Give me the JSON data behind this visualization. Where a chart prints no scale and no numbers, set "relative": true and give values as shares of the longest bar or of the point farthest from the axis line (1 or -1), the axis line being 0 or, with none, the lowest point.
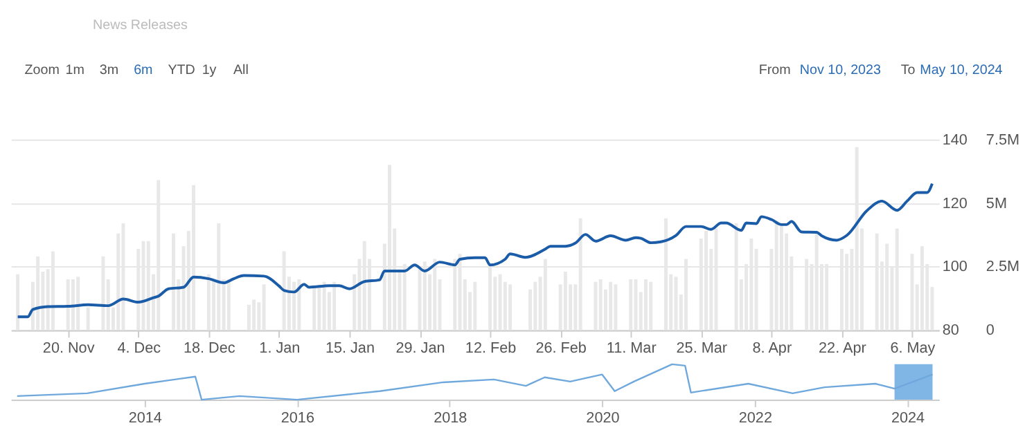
{
  "chart_data": [
    {
      "type": "line",
      "xlim": [
        "2023-11-10",
        "2024-05-10"
      ],
      "xticks": [
        {
          "value": "2023-11-20",
          "label": "20. Nov"
        },
        {
          "value": "2023-12-04",
          "label": "4. Dec"
        },
        {
          "value": "2023-12-18",
          "label": "18. Dec"
        },
        {
          "value": "2024-01-01",
          "label": "1. Jan"
        },
        {
          "value": "2024-01-15",
          "label": "15. Jan"
        },
        {
          "value": "2024-01-29",
          "label": "29. Jan"
        },
        {
          "value": "2024-02-12",
          "label": "12. Feb"
        },
        {
          "value": "2024-02-26",
          "label": "26. Feb"
        },
        {
          "value": "2024-03-11",
          "label": "11. Mar"
        },
        {
          "value": "2024-03-25",
          "label": "25. Mar"
        },
        {
          "value": "2024-04-08",
          "label": "8. Apr"
        },
        {
          "value": "2024-04-22",
          "label": "22. Apr"
        },
        {
          "value": "2024-05-06",
          "label": "6. May"
        }
      ],
      "ylim": [
        80,
        140
      ],
      "yticks": [
        80,
        100,
        120,
        140
      ],
      "y2lim": [
        0,
        7500000
      ],
      "y2ticks": [
        0,
        {
          "value": 2500000,
          "label": "2.5M"
        },
        {
          "value": 5000000,
          "label": "5M"
        },
        {
          "value": 7500000,
          "label": "7.5M"
        }
      ],
      "grid": "y",
      "annotations": [
        "News Releases",
        "Zoom",
        "1m",
        "3m",
        "6m",
        "YTD",
        "1y",
        "All",
        "From",
        "Nov 10, 2023",
        "To",
        "May 10, 2024"
      ],
      "series": [
        {
          "type": "bar",
          "axis": "y2",
          "color": "#e8e8e8",
          "x": [
            "2023-11-10",
            "2023-11-13",
            "2023-11-14",
            "2023-11-15",
            "2023-11-16",
            "2023-11-17",
            "2023-11-20",
            "2023-11-21",
            "2023-11-22",
            "2023-11-24",
            "2023-11-27",
            "2023-11-28",
            "2023-11-29",
            "2023-11-30",
            "2023-12-01",
            "2023-12-04",
            "2023-12-05",
            "2023-12-06",
            "2023-12-07",
            "2023-12-08",
            "2023-12-11",
            "2023-12-12",
            "2023-12-13",
            "2023-12-14",
            "2023-12-15",
            "2023-12-18",
            "2023-12-19",
            "2023-12-20",
            "2023-12-21",
            "2023-12-22",
            "2023-12-26",
            "2023-12-27",
            "2023-12-28",
            "2023-12-29",
            "2024-01-02",
            "2024-01-03",
            "2024-01-04",
            "2024-01-05",
            "2024-01-08",
            "2024-01-09",
            "2024-01-10",
            "2024-01-11",
            "2024-01-12",
            "2024-01-16",
            "2024-01-17",
            "2024-01-18",
            "2024-01-19",
            "2024-01-22",
            "2024-01-23",
            "2024-01-24",
            "2024-01-25",
            "2024-01-26",
            "2024-01-29",
            "2024-01-30",
            "2024-01-31",
            "2024-02-01",
            "2024-02-02",
            "2024-02-05",
            "2024-02-06",
            "2024-02-07",
            "2024-02-08",
            "2024-02-09",
            "2024-02-12",
            "2024-02-13",
            "2024-02-14",
            "2024-02-15",
            "2024-02-16",
            "2024-02-20",
            "2024-02-21",
            "2024-02-22",
            "2024-02-23",
            "2024-02-26",
            "2024-02-27",
            "2024-02-28",
            "2024-02-29",
            "2024-03-01",
            "2024-03-04",
            "2024-03-05",
            "2024-03-06",
            "2024-03-07",
            "2024-03-08",
            "2024-03-11",
            "2024-03-12",
            "2024-03-13",
            "2024-03-14",
            "2024-03-15",
            "2024-03-18",
            "2024-03-19",
            "2024-03-20",
            "2024-03-21",
            "2024-03-22",
            "2024-03-25",
            "2024-03-26",
            "2024-03-27",
            "2024-03-28",
            "2024-04-01",
            "2024-04-02",
            "2024-04-03",
            "2024-04-04",
            "2024-04-05",
            "2024-04-08",
            "2024-04-09",
            "2024-04-10",
            "2024-04-11",
            "2024-04-12",
            "2024-04-15",
            "2024-04-16",
            "2024-04-17",
            "2024-04-18",
            "2024-04-19",
            "2024-04-22",
            "2024-04-23",
            "2024-04-24",
            "2024-04-25",
            "2024-04-26",
            "2024-04-29",
            "2024-04-30",
            "2024-05-01",
            "2024-05-02",
            "2024-05-03",
            "2024-05-06",
            "2024-05-07",
            "2024-05-08",
            "2024-05-09",
            "2024-05-10"
          ],
          "values": [
            2200000,
            1900000,
            2900000,
            2300000,
            2400000,
            3100000,
            2000000,
            2000000,
            2100000,
            900000,
            2900000,
            2000000,
            900000,
            3800000,
            4200000,
            3200000,
            3500000,
            3500000,
            2200000,
            5900000,
            3800000,
            2000000,
            3300000,
            3900000,
            5700000,
            2200000,
            2000000,
            4200000,
            2000000,
            2000000,
            1000000,
            1200000,
            1100000,
            1800000,
            3100000,
            2100000,
            1900000,
            2000000,
            1700000,
            1700000,
            1900000,
            1500000,
            1900000,
            2200000,
            2800000,
            3500000,
            2800000,
            3400000,
            6500000,
            4000000,
            2400000,
            2600000,
            2400000,
            2700000,
            2200000,
            2800000,
            2000000,
            2800000,
            3000000,
            2000000,
            1500000,
            1900000,
            2600000,
            2100000,
            2200000,
            1900000,
            1800000,
            1600000,
            1900000,
            2100000,
            2800000,
            1800000,
            2300000,
            1800000,
            1800000,
            4400000,
            1900000,
            2000000,
            1600000,
            1900000,
            1800000,
            2000000,
            2000000,
            1500000,
            2000000,
            1900000,
            4400000,
            2200000,
            2100000,
            1400000,
            2800000,
            3600000,
            3900000,
            3200000,
            4000000,
            4200000,
            2000000,
            2600000,
            3600000,
            3200000,
            3200000,
            4300000,
            4100000,
            3800000,
            2900000,
            2800000,
            2600000,
            3800000,
            2600000,
            2600000,
            3200000,
            3000000,
            3200000,
            7200000,
            4000000,
            3800000,
            2700000,
            3400000,
            2500000,
            4000000,
            3000000,
            1800000,
            3300000,
            2600000,
            1700000
          ]
        },
        {
          "type": "line",
          "color": "#1a5ca8",
          "x": [
            "2023-11-10",
            "2023-11-12",
            "2023-11-13",
            "2023-11-16",
            "2023-11-20",
            "2023-11-24",
            "2023-11-28",
            "2023-12-01",
            "2023-12-04",
            "2023-12-07",
            "2023-12-08",
            "2023-12-10",
            "2023-12-13",
            "2023-12-15",
            "2023-12-18",
            "2023-12-21",
            "2023-12-23",
            "2023-12-25",
            "2023-12-29",
            "2024-01-01",
            "2024-01-02",
            "2024-01-04",
            "2024-01-06",
            "2024-01-07",
            "2024-01-11",
            "2024-01-13",
            "2024-01-15",
            "2024-01-18",
            "2024-01-21",
            "2024-01-22",
            "2024-01-26",
            "2024-01-28",
            "2024-01-30",
            "2024-02-02",
            "2024-02-05",
            "2024-02-06",
            "2024-02-09",
            "2024-02-11",
            "2024-02-12",
            "2024-02-15",
            "2024-02-16",
            "2024-02-19",
            "2024-02-23",
            "2024-02-24",
            "2024-02-27",
            "2024-02-29",
            "2024-03-02",
            "2024-03-04",
            "2024-03-07",
            "2024-03-10",
            "2024-03-12",
            "2024-03-13",
            "2024-03-15",
            "2024-03-17",
            "2024-03-20",
            "2024-03-22",
            "2024-03-25",
            "2024-03-27",
            "2024-03-29",
            "2024-03-30",
            "2024-04-02",
            "2024-04-03",
            "2024-04-05",
            "2024-04-06",
            "2024-04-08",
            "2024-04-10",
            "2024-04-11",
            "2024-04-12",
            "2024-04-14",
            "2024-04-17",
            "2024-04-18",
            "2024-04-21",
            "2024-04-23",
            "2024-04-27",
            "2024-04-30",
            "2024-05-03",
            "2024-05-05",
            "2024-05-07",
            "2024-05-09",
            "2024-05-10"
          ],
          "values": [
            84.2,
            84.2,
            86.5,
            87.4,
            87.5,
            88,
            87.7,
            89.8,
            88.8,
            90.2,
            90.7,
            93,
            93.5,
            96.7,
            96.2,
            94.9,
            96.2,
            97.2,
            97,
            93.9,
            92.5,
            92,
            94.4,
            93.5,
            94,
            94,
            93,
            95.3,
            95.8,
            98.6,
            98.6,
            100.5,
            98.6,
            101.4,
            100.5,
            102.3,
            102.8,
            102.8,
            100.5,
            102.3,
            104,
            102.9,
            105.5,
            106.4,
            106.4,
            107.4,
            110.1,
            108,
            109.7,
            108.3,
            109.1,
            108.9,
            107.5,
            107.8,
            109.8,
            112.6,
            112.6,
            111.7,
            113.7,
            113.7,
            111.4,
            113.7,
            113.5,
            115.7,
            114.8,
            113.2,
            113.2,
            114.2,
            110.9,
            110.8,
            109.7,
            108.3,
            109.8,
            117.6,
            120.6,
            117.7,
            120.6,
            123.3,
            123.3,
            126.1
          ]
        }
      ]
    },
    {
      "type": "line",
      "relative": true,
      "xlim": [
        "2012-04",
        "2024-06"
      ],
      "xticks": [
        "2014",
        "2016",
        "2018",
        "2020",
        "2022",
        "2024"
      ],
      "bands": [
        {
          "axis": "x",
          "from": "2023-11",
          "to": "2024-05",
          "color": "#7fb6e6"
        }
      ],
      "series": [
        {
          "color": "#6fa8dc",
          "x": [
            "2012-05",
            "2013-04",
            "2014-01",
            "2014-09",
            "2014-10",
            "2015-04",
            "2016-01",
            "2017-02",
            "2017-12",
            "2018-08",
            "2019-01",
            "2019-04",
            "2019-08",
            "2020-01",
            "2020-03",
            "2020-06",
            "2020-12",
            "2021-02",
            "2021-03",
            "2021-12",
            "2022-07",
            "2022-12",
            "2023-08",
            "2023-11",
            "2024-05"
          ],
          "values": [
            0.1,
            0.18,
            0.45,
            0.65,
            0,
            0.1,
            0,
            0.24,
            0.49,
            0.57,
            0.39,
            0.63,
            0.51,
            0.71,
            0.24,
            0.51,
            1,
            0.96,
            0.2,
            0.45,
            0.18,
            0.35,
            0.45,
            0.31,
            0.71
          ]
        }
      ]
    }
  ]
}
